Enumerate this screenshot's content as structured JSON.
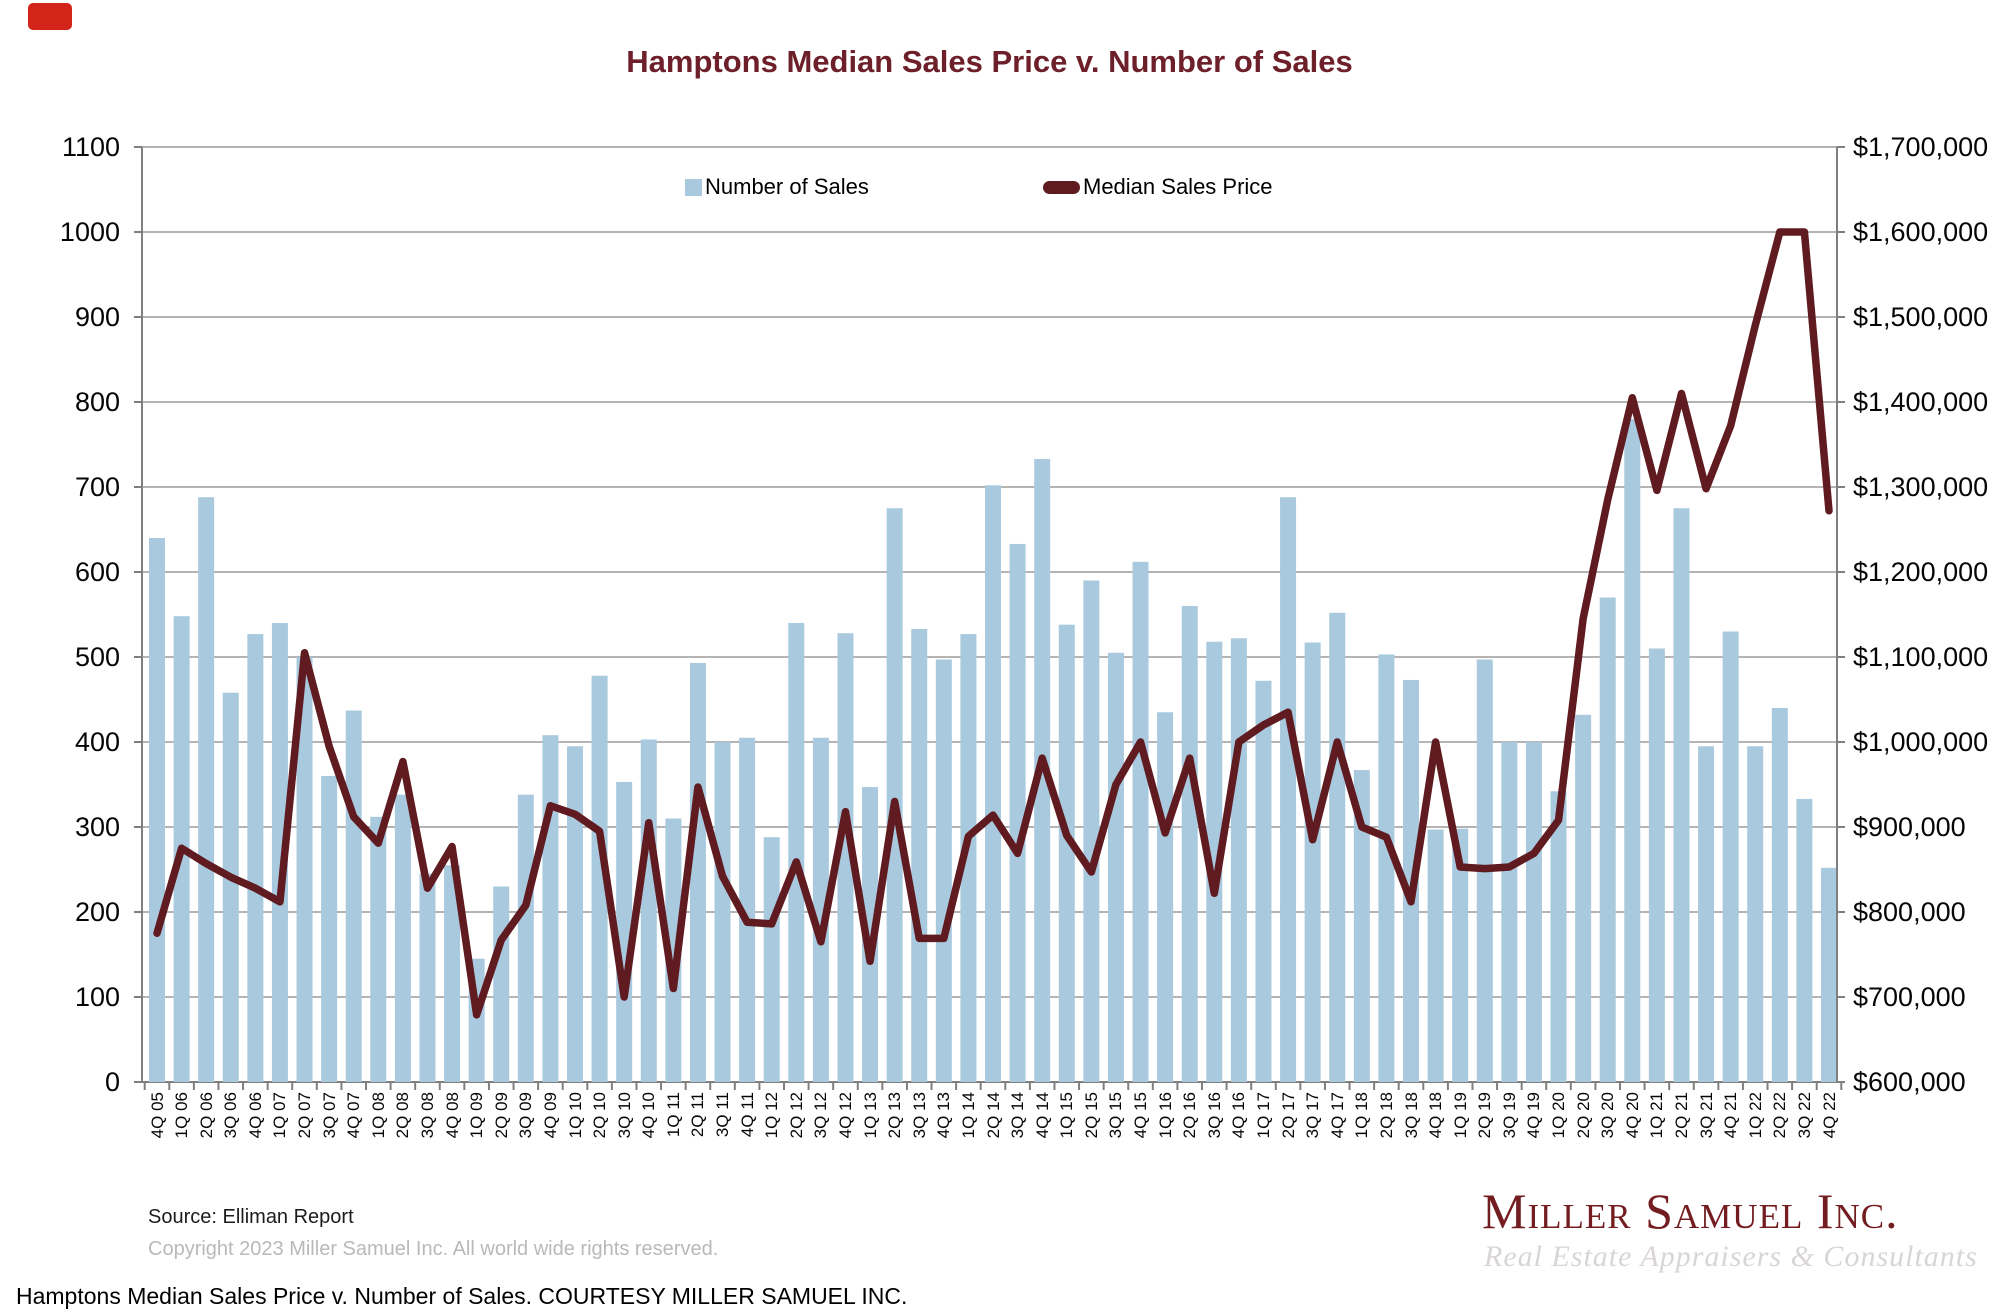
{
  "page": {
    "caption": "Hamptons Median Sales Price v. Number of Sales. COURTESY MILLER SAMUEL INC.",
    "badge_color": "#d22418"
  },
  "chart": {
    "title": "Hamptons Median Sales Price v. Number of Sales",
    "legend": [
      {
        "label": "Number of Sales",
        "type": "bar",
        "color": "#a9c9de"
      },
      {
        "label": "Median Sales Price",
        "type": "line",
        "color": "#5f1b20"
      }
    ],
    "source_note": "Source: Elliman Report",
    "copyright_note": "Copyright 2023 Miller Samuel Inc.  All world wide rights reserved.",
    "branding": {
      "name": "Miller Samuel Inc.",
      "tagline": "Real Estate Appraisers & Consultants"
    }
  },
  "chart_data": {
    "type": "bar+line",
    "title": "Hamptons Median Sales Price v. Number of Sales",
    "grid": true,
    "legend_position": "top",
    "categories": [
      "4Q 05",
      "1Q 06",
      "2Q 06",
      "3Q 06",
      "4Q 06",
      "1Q 07",
      "2Q 07",
      "3Q 07",
      "4Q 07",
      "1Q 08",
      "2Q 08",
      "3Q 08",
      "4Q 08",
      "1Q 09",
      "2Q 09",
      "3Q 09",
      "4Q 09",
      "1Q 10",
      "2Q 10",
      "3Q 10",
      "4Q 10",
      "1Q 11",
      "2Q 11",
      "3Q 11",
      "4Q 11",
      "1Q 12",
      "2Q 12",
      "3Q 12",
      "4Q 12",
      "1Q 13",
      "2Q 13",
      "3Q 13",
      "4Q 13",
      "1Q 14",
      "2Q 14",
      "3Q 14",
      "4Q 14",
      "1Q 15",
      "2Q 15",
      "3Q 15",
      "4Q 15",
      "1Q 16",
      "2Q 16",
      "3Q 16",
      "4Q 16",
      "1Q 17",
      "2Q 17",
      "3Q 17",
      "4Q 17",
      "1Q 18",
      "2Q 18",
      "3Q 18",
      "4Q 18",
      "1Q 19",
      "2Q 19",
      "3Q 19",
      "4Q 19",
      "1Q 20",
      "2Q 20",
      "3Q 20",
      "4Q 20",
      "1Q 21",
      "2Q 21",
      "3Q 21",
      "4Q 21",
      "1Q 22",
      "2Q 22",
      "3Q 22",
      "4Q 22"
    ],
    "series": [
      {
        "name": "Number of Sales",
        "type": "bar",
        "axis": "left",
        "color": "#a9c9de",
        "values": [
          640,
          548,
          688,
          458,
          527,
          540,
          500,
          360,
          437,
          312,
          338,
          245,
          255,
          145,
          230,
          338,
          408,
          395,
          478,
          353,
          403,
          310,
          493,
          400,
          405,
          288,
          540,
          405,
          528,
          347,
          675,
          533,
          497,
          527,
          702,
          633,
          733,
          538,
          590,
          505,
          612,
          435,
          560,
          518,
          522,
          472,
          688,
          517,
          552,
          367,
          503,
          473,
          297,
          298,
          497,
          400,
          400,
          342,
          432,
          570,
          780,
          510,
          675,
          395,
          530,
          395,
          440,
          333,
          252
        ]
      },
      {
        "name": "Median Sales Price",
        "type": "line",
        "axis": "right",
        "color": "#5f1b20",
        "values": [
          775000,
          875000,
          857000,
          841000,
          828000,
          812000,
          1105000,
          995000,
          912000,
          881000,
          977000,
          828000,
          877000,
          679000,
          767000,
          808000,
          925000,
          915000,
          895000,
          700000,
          905000,
          710000,
          947000,
          842000,
          788000,
          786000,
          859000,
          765000,
          918000,
          742000,
          930000,
          769000,
          769000,
          889000,
          914000,
          869000,
          981000,
          890000,
          847000,
          950000,
          1000000,
          893000,
          981000,
          822000,
          1000000,
          1020000,
          1035000,
          885000,
          1000000,
          900000,
          888000,
          812000,
          1000000,
          853000,
          851000,
          853000,
          869000,
          908000,
          1145000,
          1285000,
          1405000,
          1296000,
          1410000,
          1298000,
          1372000,
          1490000,
          1600000,
          1600000,
          1272000
        ]
      }
    ],
    "left_axis": {
      "min": 0,
      "max": 1100,
      "step": 100,
      "tick_labels": [
        "0",
        "100",
        "200",
        "300",
        "400",
        "500",
        "600",
        "700",
        "800",
        "900",
        "1000",
        "1100"
      ]
    },
    "right_axis": {
      "min": 600000,
      "max": 1700000,
      "step": 100000,
      "tick_labels": [
        "$600,000",
        "$700,000",
        "$800,000",
        "$900,000",
        "$1,000,000",
        "$1,100,000",
        "$1,200,000",
        "$1,300,000",
        "$1,400,000",
        "$1,500,000",
        "$1,600,000",
        "$1,700,000"
      ]
    }
  }
}
